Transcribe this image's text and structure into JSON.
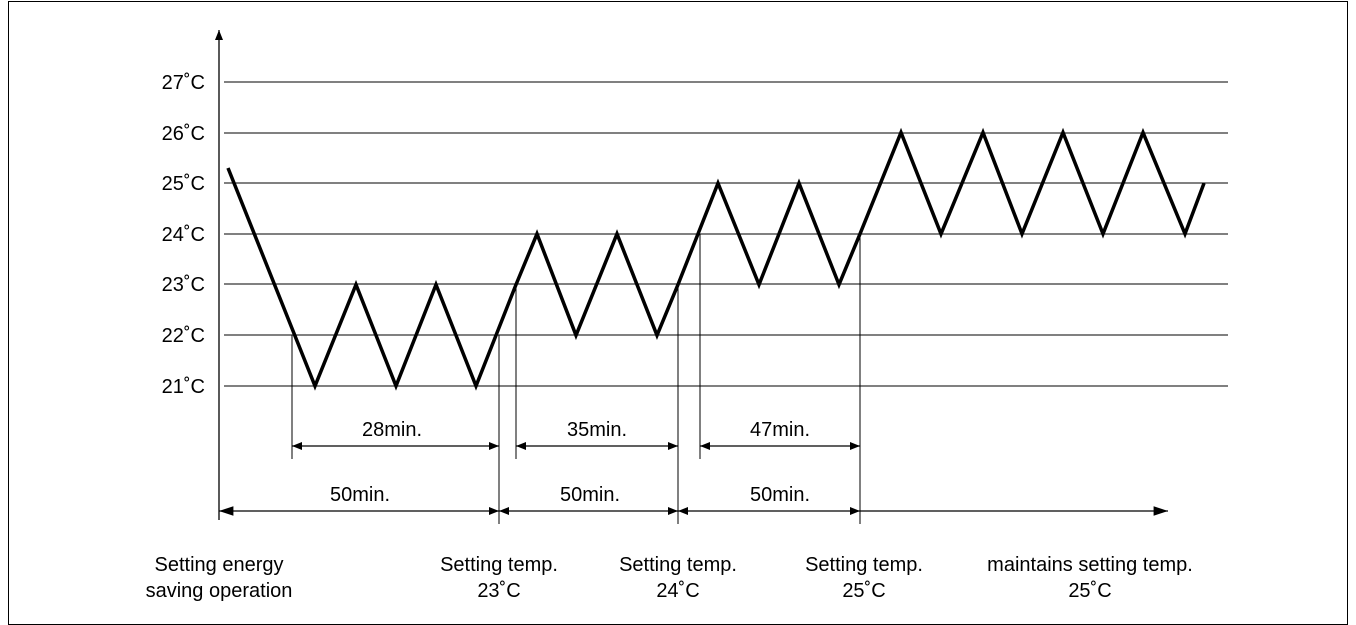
{
  "y_axis": {
    "ticks": [
      "27˚C",
      "26˚C",
      "25˚C",
      "24˚C",
      "23˚C",
      "22˚C",
      "21˚C"
    ]
  },
  "durations": {
    "upper": [
      "28min.",
      "35min.",
      "47min."
    ],
    "lower": [
      "50min.",
      "50min.",
      "50min."
    ]
  },
  "captions": [
    {
      "line1": "Setting energy",
      "line2": "saving operation"
    },
    {
      "line1": "Setting temp.",
      "line2": "23˚C"
    },
    {
      "line1": "Setting temp.",
      "line2": "24˚C"
    },
    {
      "line1": "Setting temp.",
      "line2": "25˚C"
    },
    {
      "line1": "maintains setting temp.",
      "line2": "25˚C"
    }
  ],
  "temperature_profile": {
    "unit": "°C",
    "values": [
      25.3,
      21,
      23,
      21,
      23,
      21,
      23,
      24,
      22,
      24,
      22,
      23,
      25,
      23,
      25,
      23,
      24,
      26,
      24,
      26,
      24,
      26,
      24,
      26,
      24,
      25
    ]
  },
  "colors": {
    "line": "#000000",
    "background": "#ffffff"
  }
}
